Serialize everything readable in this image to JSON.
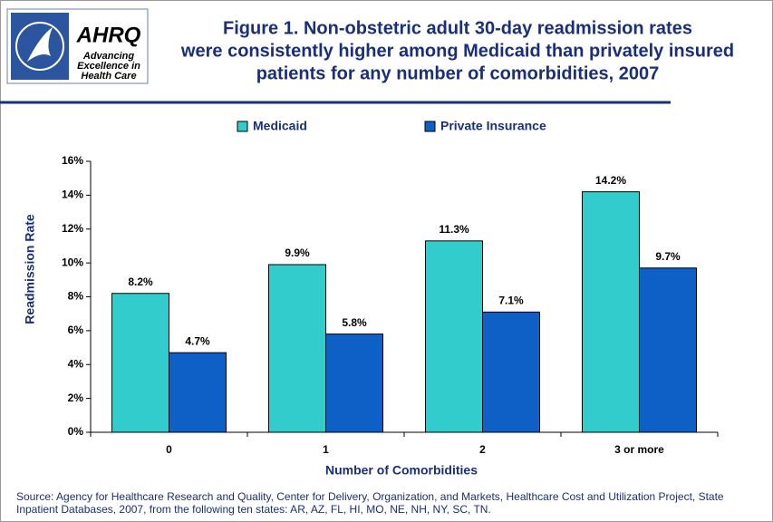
{
  "logo": {
    "name": "AHRQ",
    "tagline": [
      "Advancing",
      "Excellence in",
      "Health Care"
    ]
  },
  "chart_data": {
    "type": "bar",
    "title": [
      "Figure 1. Non-obstetric adult 30-day readmission rates",
      "were consistently higher among Medicaid than privately insured",
      "patients for any number of comorbidities, 2007"
    ],
    "x_label": "Number of Comorbidities",
    "y_label": "Readmission Rate",
    "categories": [
      "0",
      "1",
      "2",
      "3 or more"
    ],
    "series": [
      {
        "name": "Medicaid",
        "color": "#33cccc",
        "values": [
          8.2,
          9.9,
          11.3,
          14.2
        ],
        "value_labels": [
          "8.2%",
          "9.9%",
          "11.3%",
          "14.2%"
        ]
      },
      {
        "name": "Private Insurance",
        "color": "#0e5fc6",
        "values": [
          4.7,
          5.8,
          7.1,
          9.7
        ],
        "value_labels": [
          "4.7%",
          "5.8%",
          "7.1%",
          "9.7%"
        ]
      }
    ],
    "ylim": [
      0,
      16
    ],
    "yticks": [
      {
        "value": 0,
        "label": "0%"
      },
      {
        "value": 2,
        "label": "2%"
      },
      {
        "value": 4,
        "label": "4%"
      },
      {
        "value": 6,
        "label": "6%"
      },
      {
        "value": 8,
        "label": "8%"
      },
      {
        "value": 10,
        "label": "10%"
      },
      {
        "value": 12,
        "label": "12%"
      },
      {
        "value": 14,
        "label": "14%"
      },
      {
        "value": 16,
        "label": "16%"
      }
    ],
    "legend": "top",
    "source": [
      "Source: Agency for Healthcare Research and Quality, Center for Delivery, Organization, and Markets, Healthcare Cost and Utilization Project, State",
      "Inpatient Databases, 2007, from the following ten states: AR, AZ, FL, HI, MO, NE, NH, NY, SC, TN."
    ]
  }
}
